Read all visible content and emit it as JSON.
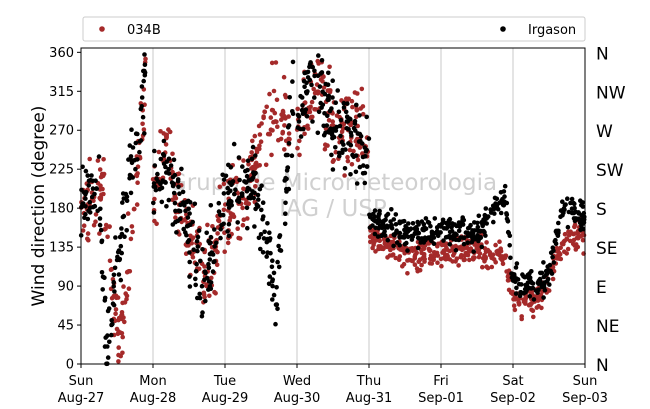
{
  "chart_data": {
    "type": "scatter",
    "ylabel": "Wind direction (degree)",
    "ylim": [
      0,
      365
    ],
    "yticks": [
      0,
      45,
      90,
      135,
      180,
      225,
      270,
      315,
      360
    ],
    "xlim": [
      "2017-08-27",
      "2017-09-03"
    ],
    "xticks": [
      {
        "day": "Sun",
        "date": "Aug-27"
      },
      {
        "day": "Mon",
        "date": "Aug-28"
      },
      {
        "day": "Tue",
        "date": "Aug-29"
      },
      {
        "day": "Wed",
        "date": "Aug-30"
      },
      {
        "day": "Thu",
        "date": "Aug-31"
      },
      {
        "day": "Fri",
        "date": "Sep-01"
      },
      {
        "day": "Sat",
        "date": "Sep-02"
      },
      {
        "day": "Sun",
        "date": "Sep-03"
      }
    ],
    "right_axis_labels": [
      "N",
      "NE",
      "E",
      "SE",
      "S",
      "SW",
      "W",
      "NW",
      "N"
    ],
    "grid": "vertical at day ticks",
    "legend": {
      "placement": "top, above plot",
      "entries": [
        "034B",
        "Irgason"
      ]
    },
    "watermark": [
      "Grupo de Micrometeorologia",
      "IAG / USP"
    ],
    "series": [
      {
        "name": "034B",
        "color": "#a52a2a",
        "segments": [
          [
            0.0,
            185,
            0.3,
            200,
            0.55,
            25,
            0.9,
            325
          ],
          [
            1.0,
            175,
            1.2,
            260,
            1.4,
            175,
            1.75,
            100,
            2.0,
            175
          ],
          [
            2.0,
            170,
            2.2,
            185,
            2.4,
            225,
            2.7,
            305,
            2.9,
            260
          ],
          [
            3.0,
            280,
            3.3,
            315,
            3.45,
            280,
            3.6,
            270,
            3.8,
            280,
            4.0,
            250
          ],
          [
            4.0,
            150,
            4.5,
            125,
            5.0,
            130,
            5.5,
            130,
            5.9,
            120,
            6.0,
            75
          ],
          [
            6.0,
            75,
            6.3,
            70,
            6.5,
            95,
            6.7,
            140,
            7.0,
            150
          ]
        ]
      },
      {
        "name": "Irgason",
        "color": "#000000",
        "segments": [
          [
            0.0,
            190,
            0.25,
            210,
            0.35,
            25,
            0.55,
            140,
            0.9,
            330
          ],
          [
            1.0,
            195,
            1.2,
            230,
            1.4,
            180,
            1.7,
            90,
            2.0,
            190
          ],
          [
            2.0,
            185,
            2.2,
            200,
            2.4,
            220,
            2.7,
            80,
            2.95,
            300
          ],
          [
            3.0,
            290,
            3.25,
            330,
            3.45,
            290,
            3.6,
            270,
            3.8,
            260,
            4.0,
            240
          ],
          [
            4.0,
            170,
            4.5,
            150,
            5.0,
            155,
            5.5,
            150,
            5.9,
            195,
            6.0,
            95
          ],
          [
            6.0,
            95,
            6.3,
            90,
            6.5,
            105,
            6.7,
            180,
            7.0,
            170
          ]
        ]
      }
    ]
  }
}
